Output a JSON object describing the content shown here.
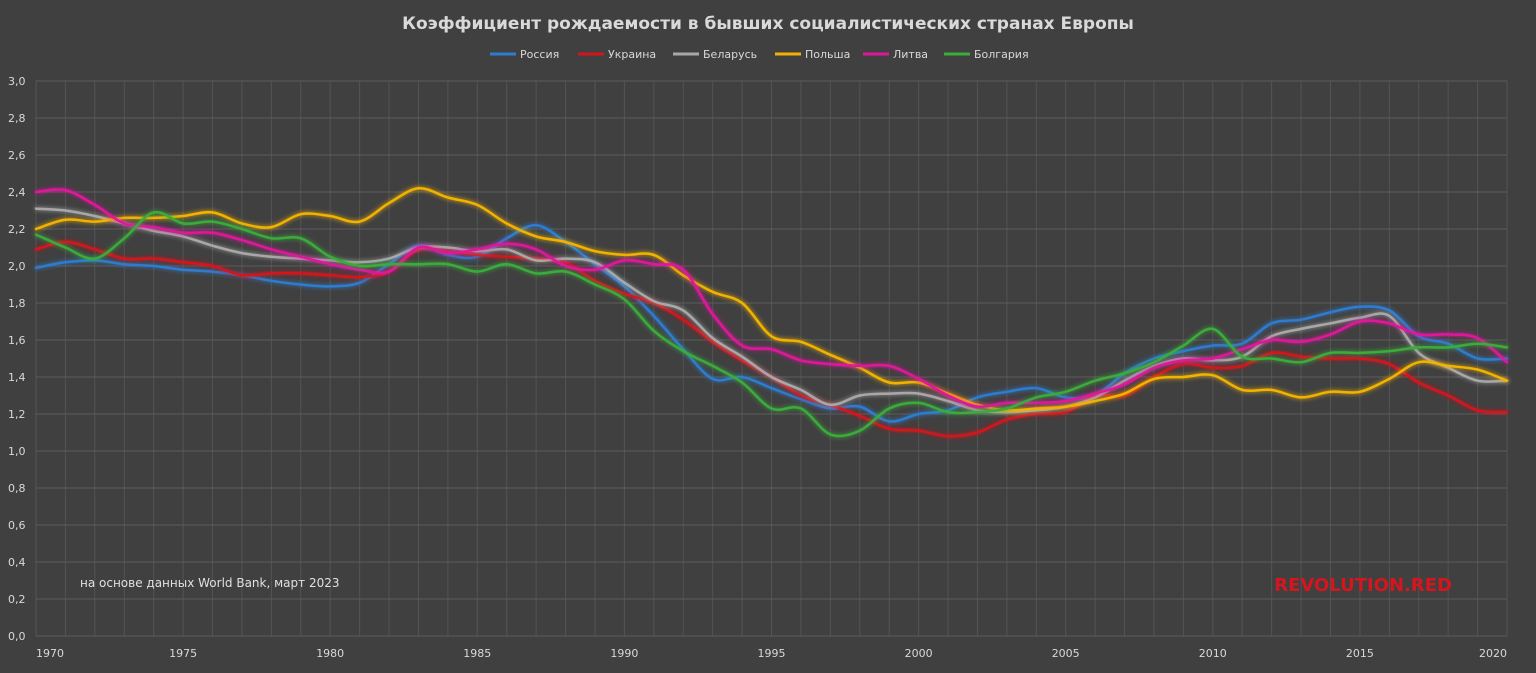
{
  "chart_data": {
    "type": "line",
    "title": "Коэффициент рождаемости в бывших социалистических странах Европы",
    "x": [
      1970,
      1971,
      1972,
      1973,
      1974,
      1975,
      1976,
      1977,
      1978,
      1979,
      1980,
      1981,
      1982,
      1983,
      1984,
      1985,
      1986,
      1987,
      1988,
      1989,
      1990,
      1991,
      1992,
      1993,
      1994,
      1995,
      1996,
      1997,
      1998,
      1999,
      2000,
      2001,
      2002,
      2003,
      2004,
      2005,
      2006,
      2007,
      2008,
      2009,
      2010,
      2011,
      2012,
      2013,
      2014,
      2015,
      2016,
      2017,
      2018,
      2019,
      2020
    ],
    "xlim": [
      1970,
      2020
    ],
    "x_ticks": [
      "1970",
      "1975",
      "1980",
      "1985",
      "1990",
      "1995",
      "2000",
      "2005",
      "2010",
      "2015",
      "2020"
    ],
    "ylim": [
      0,
      3.0
    ],
    "y_ticks": [
      "0,0",
      "0,2",
      "0,4",
      "0,6",
      "0,8",
      "1,0",
      "1,2",
      "1,4",
      "1,6",
      "1,8",
      "2,0",
      "2,2",
      "2,4",
      "2,6",
      "2,8",
      "3,0"
    ],
    "grid": true,
    "legend_position": "top-center",
    "series": [
      {
        "name": "Россия",
        "color": "#2e7bcf",
        "values": [
          1.99,
          2.02,
          2.03,
          2.01,
          2.0,
          1.98,
          1.97,
          1.95,
          1.92,
          1.9,
          1.89,
          1.91,
          2.01,
          2.11,
          2.06,
          2.05,
          2.15,
          2.22,
          2.13,
          2.01,
          1.89,
          1.73,
          1.55,
          1.39,
          1.4,
          1.34,
          1.28,
          1.23,
          1.24,
          1.16,
          1.2,
          1.22,
          1.29,
          1.32,
          1.34,
          1.29,
          1.3,
          1.42,
          1.5,
          1.54,
          1.57,
          1.58,
          1.69,
          1.71,
          1.75,
          1.78,
          1.76,
          1.62,
          1.58,
          1.5,
          1.5
        ]
      },
      {
        "name": "Украина",
        "color": "#d4141b",
        "values": [
          2.09,
          2.13,
          2.09,
          2.04,
          2.04,
          2.02,
          2.0,
          1.95,
          1.96,
          1.96,
          1.95,
          1.94,
          1.97,
          2.09,
          2.08,
          2.06,
          2.05,
          2.04,
          2.02,
          1.92,
          1.85,
          1.8,
          1.71,
          1.59,
          1.49,
          1.4,
          1.3,
          1.25,
          1.19,
          1.12,
          1.11,
          1.08,
          1.1,
          1.17,
          1.2,
          1.21,
          1.3,
          1.3,
          1.4,
          1.47,
          1.45,
          1.46,
          1.53,
          1.51,
          1.5,
          1.5,
          1.47,
          1.37,
          1.3,
          1.22,
          1.21
        ]
      },
      {
        "name": "Беларусь",
        "color": "#a8a8a8",
        "values": [
          2.31,
          2.3,
          2.27,
          2.23,
          2.19,
          2.16,
          2.11,
          2.07,
          2.05,
          2.04,
          2.03,
          2.02,
          2.04,
          2.1,
          2.1,
          2.08,
          2.09,
          2.03,
          2.04,
          2.02,
          1.91,
          1.81,
          1.76,
          1.61,
          1.51,
          1.4,
          1.33,
          1.25,
          1.3,
          1.31,
          1.31,
          1.27,
          1.22,
          1.21,
          1.22,
          1.24,
          1.29,
          1.38,
          1.46,
          1.5,
          1.49,
          1.51,
          1.62,
          1.66,
          1.69,
          1.72,
          1.73,
          1.53,
          1.45,
          1.38,
          1.38
        ]
      },
      {
        "name": "Польша",
        "color": "#f2b205",
        "values": [
          2.2,
          2.25,
          2.24,
          2.26,
          2.26,
          2.27,
          2.29,
          2.23,
          2.21,
          2.28,
          2.27,
          2.24,
          2.34,
          2.42,
          2.37,
          2.33,
          2.23,
          2.16,
          2.13,
          2.08,
          2.06,
          2.06,
          1.95,
          1.86,
          1.8,
          1.62,
          1.59,
          1.52,
          1.45,
          1.37,
          1.37,
          1.31,
          1.25,
          1.22,
          1.23,
          1.24,
          1.27,
          1.31,
          1.39,
          1.4,
          1.41,
          1.33,
          1.33,
          1.29,
          1.32,
          1.32,
          1.39,
          1.48,
          1.46,
          1.44,
          1.38
        ]
      },
      {
        "name": "Литва",
        "color": "#e0169c",
        "values": [
          2.4,
          2.41,
          2.33,
          2.23,
          2.21,
          2.18,
          2.18,
          2.14,
          2.09,
          2.05,
          2.01,
          1.98,
          1.97,
          2.1,
          2.07,
          2.09,
          2.12,
          2.09,
          2.0,
          1.98,
          2.03,
          2.01,
          1.98,
          1.74,
          1.57,
          1.55,
          1.49,
          1.47,
          1.46,
          1.46,
          1.39,
          1.3,
          1.24,
          1.26,
          1.26,
          1.27,
          1.31,
          1.36,
          1.45,
          1.49,
          1.5,
          1.55,
          1.6,
          1.59,
          1.63,
          1.7,
          1.69,
          1.63,
          1.63,
          1.61,
          1.48
        ]
      },
      {
        "name": "Болгария",
        "color": "#3aac3a",
        "values": [
          2.17,
          2.1,
          2.04,
          2.15,
          2.29,
          2.23,
          2.24,
          2.2,
          2.15,
          2.15,
          2.05,
          2.0,
          2.01,
          2.01,
          2.01,
          1.97,
          2.01,
          1.96,
          1.97,
          1.9,
          1.82,
          1.65,
          1.54,
          1.46,
          1.37,
          1.23,
          1.23,
          1.09,
          1.11,
          1.23,
          1.26,
          1.21,
          1.21,
          1.23,
          1.29,
          1.32,
          1.38,
          1.42,
          1.48,
          1.57,
          1.66,
          1.51,
          1.5,
          1.48,
          1.53,
          1.53,
          1.54,
          1.56,
          1.56,
          1.58,
          1.56
        ]
      }
    ]
  },
  "source_note": "на основе данных World Bank, март 2023",
  "watermark": "REVOLUTION.RED",
  "colors": {
    "background": "#404040",
    "grid": "#5a5a5a",
    "text": "#d9d9d9",
    "watermark": "#d6151e"
  }
}
